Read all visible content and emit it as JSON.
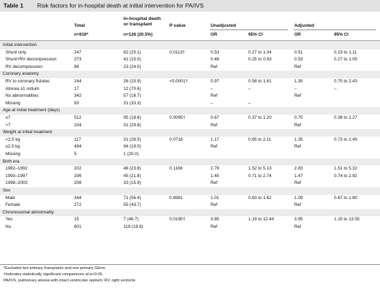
{
  "table": {
    "number": "Table 1",
    "title": "Risk factors for in-hospital death at initial intervention for PA/IVS",
    "headers": {
      "total": "Total",
      "death_line1": "In-hospital death",
      "death_line2": "or transplant",
      "pvalue": "P value",
      "unadjusted": "Unadjusted",
      "adjusted": "Adjusted"
    },
    "subheaders": {
      "total_n": "n=616*",
      "death_n": "n=126 (20.5%)",
      "or_u": "OR",
      "ci_u": "95% CI",
      "or_a": "OR",
      "ci_a": "95% CI"
    },
    "rows": [
      {
        "kind": "section",
        "label": "Initial intervention"
      },
      {
        "kind": "data",
        "label": "Shunt only",
        "total": "247",
        "death": "62 (25.1)",
        "p": "0.0113†",
        "or_u": "0.53",
        "ci_u": "0.27 to 1.04",
        "or_a": "0.51",
        "ci_a": "0.23 to 1.11"
      },
      {
        "kind": "data",
        "label": "Shunt+RV decompression",
        "total": "273",
        "death": "41 (15.0)",
        "p": "",
        "or_u": "0.48",
        "ci_u": "0.25 to 0.93",
        "or_a": "0.53",
        "ci_a": "0.27 to 1.05"
      },
      {
        "kind": "data",
        "label": "RV decompression",
        "total": "96",
        "death": "23 (24.0)",
        "p": "",
        "or_u": "Ref",
        "ci_u": "",
        "or_a": "Ref",
        "ci_a": ""
      },
      {
        "kind": "section",
        "label": "Coronary anatomy"
      },
      {
        "kind": "data",
        "label": "RV to coronary fistulas",
        "total": "164",
        "death": "26 (15.9)",
        "p": "<0.0001†",
        "or_u": "0.97",
        "ci_u": "0.58 to 1.61",
        "or_a": "1.30",
        "ci_a": "0.70 to 2.43"
      },
      {
        "kind": "data",
        "label": "Atresia ≥1 ostium",
        "total": "17",
        "death": "12 (70.6)",
        "p": "",
        "or_u": "–",
        "ci_u": "–",
        "or_a": "–",
        "ci_a": "–"
      },
      {
        "kind": "data",
        "label": "No abnormalities",
        "total": "342",
        "death": "57 (16.7)",
        "p": "",
        "or_u": "Ref",
        "ci_u": "",
        "or_a": "Ref",
        "ci_a": ""
      },
      {
        "kind": "data",
        "label": "Missing",
        "total": "93",
        "death": "31 (33.3)",
        "p": "",
        "or_u": "–",
        "ci_u": "–",
        "or_a": "",
        "ci_a": ""
      },
      {
        "kind": "section",
        "label": "Age at initial treatment (days)"
      },
      {
        "kind": "data",
        "label": "≤7",
        "total": "512",
        "death": "95 (18.6)",
        "p": "0.0095†",
        "or_u": "0.67",
        "ci_u": "0.37 to 1.20",
        "or_a": "0.70",
        "ci_a": "0.38 to 1.27"
      },
      {
        "kind": "data",
        "label": ">7",
        "total": "104",
        "death": "31 (29.8)",
        "p": "",
        "or_u": "Ref",
        "ci_u": "",
        "or_a": "Ref",
        "ci_a": ""
      },
      {
        "kind": "section",
        "label": "Weight at initial treatment"
      },
      {
        "kind": "data",
        "label": "<2.5 kg",
        "total": "117",
        "death": "31 (26.5)",
        "p": "0.0718",
        "or_u": "1.17",
        "ci_u": "0.65 to 2.11",
        "or_a": "1.35",
        "ci_a": "0.73 to 2.49"
      },
      {
        "kind": "data",
        "label": "≥2.5 kg",
        "total": "494",
        "death": "94 (19.0)",
        "p": "",
        "or_u": "Ref",
        "ci_u": "",
        "or_a": "Ref",
        "ci_a": ""
      },
      {
        "kind": "data",
        "label": "Missing",
        "total": "5",
        "death": "1 (20.0)",
        "p": "",
        "or_u": "",
        "ci_u": "",
        "or_a": "",
        "ci_a": ""
      },
      {
        "kind": "section",
        "label": "Birth era"
      },
      {
        "kind": "data",
        "label": "1982–1992",
        "total": "202",
        "death": "48 (23.8)",
        "p": "0.1168",
        "or_u": "2.79",
        "ci_u": "1.52 to 5.13",
        "or_a": "2.83",
        "ci_a": "1.51 to 5.32"
      },
      {
        "kind": "data",
        "label": "1993–1997",
        "total": "206",
        "death": "45 (21.8)",
        "p": "",
        "or_u": "1.40",
        "ci_u": "0.71 to 2.74",
        "or_a": "1.47",
        "ci_a": "0.74 to 2.92"
      },
      {
        "kind": "data",
        "label": "1998–2003",
        "total": "208",
        "death": "33 (15.9)",
        "p": "",
        "or_u": "Ref",
        "ci_u": "",
        "or_a": "Ref",
        "ci_a": ""
      },
      {
        "kind": "section",
        "label": "Sex"
      },
      {
        "kind": "data",
        "label": "Male",
        "total": "344",
        "death": "71 (56.4)",
        "p": "0.8981",
        "or_u": "1.01",
        "ci_u": "0.63 to 1.62",
        "or_a": "1.09",
        "ci_a": "0.67 to 1.80"
      },
      {
        "kind": "data",
        "label": "Female",
        "total": "272",
        "death": "55 (43.7)",
        "p": "",
        "or_u": "Ref",
        "ci_u": "",
        "or_a": "Ref",
        "ci_a": ""
      },
      {
        "kind": "section",
        "label": "Chromosomal abnormality"
      },
      {
        "kind": "data",
        "label": "Yes",
        "total": "15",
        "death": "7 (46.7)",
        "p": "0.0190†",
        "or_u": "3.85",
        "ci_u": "1.19 to 12.44",
        "or_a": "3.95",
        "ci_a": "1.15 to 13.55"
      },
      {
        "kind": "data",
        "label": "No",
        "total": "601",
        "death": "119 (19.8)",
        "p": "",
        "or_u": "Ref",
        "ci_u": "",
        "or_a": "Ref",
        "ci_a": ""
      }
    ],
    "footnotes": [
      "*Excluded two primary transplants and one primary Glenn.",
      "†Indicates statistically significant comparisons at p<0.05.",
      "PA/IVS, pulmonary atresia with intact ventricular septum; RV, right ventricle."
    ]
  }
}
